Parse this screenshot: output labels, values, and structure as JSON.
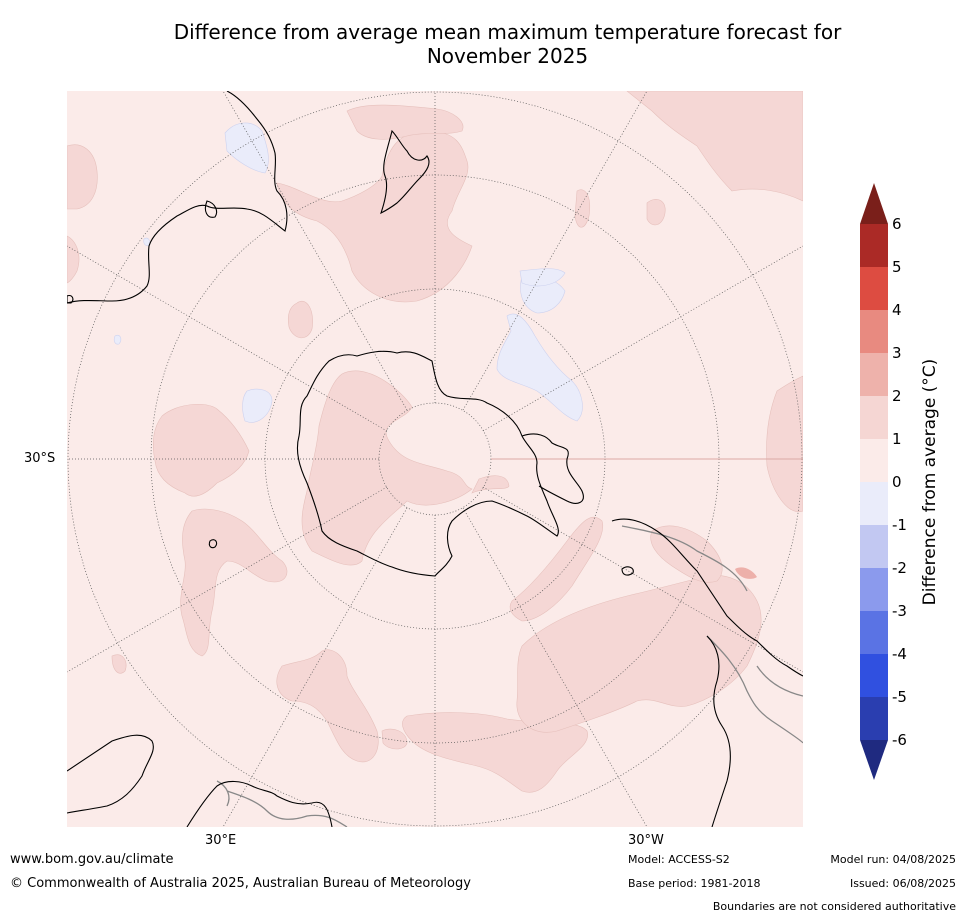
{
  "title_line1": "Difference from average mean maximum temperature forecast for",
  "title_line2": "November 2025",
  "map": {
    "projection": "south-polar stereographic",
    "latitude_label": "30°S",
    "longitude_labels": [
      "30°E",
      "30°W"
    ],
    "colors": {
      "ocean_anomaly_0_1": "#fbebe9",
      "anomaly_1_2": "#f5d7d5",
      "anomaly_2_3": "#edb0aa",
      "anomaly_neg1_0": "#eaecfa",
      "coastline": "#000000",
      "boundaries": "#888888"
    }
  },
  "colorbar": {
    "label": "Difference from average (°C)",
    "tick_labels": [
      "6",
      "5",
      "4",
      "3",
      "2",
      "1",
      "0",
      "-1",
      "-2",
      "-3",
      "-4",
      "-5",
      "-6"
    ],
    "segment_colors": [
      "#ab2a26",
      "#dd4c41",
      "#e88a80",
      "#eeb2ab",
      "#f5d6d3",
      "#fbebe9",
      "#eaecfa",
      "#c2c8f2",
      "#8b9aed",
      "#5a73e4",
      "#3050e0",
      "#2a3eb0"
    ],
    "upper_extend_color": "#7a1f1a",
    "lower_extend_color": "#1f2a80"
  },
  "footer": {
    "url": "www.bom.gov.au/climate",
    "copyright": "© Commonwealth of Australia 2025, Australian Bureau of Meteorology",
    "model": "Model: ACCESS-S2",
    "base_period": "Base period: 1981-2018",
    "model_run": "Model run: 04/08/2025",
    "issued": "Issued: 06/08/2025",
    "boundaries_note": "Boundaries are not considered authoritative"
  }
}
